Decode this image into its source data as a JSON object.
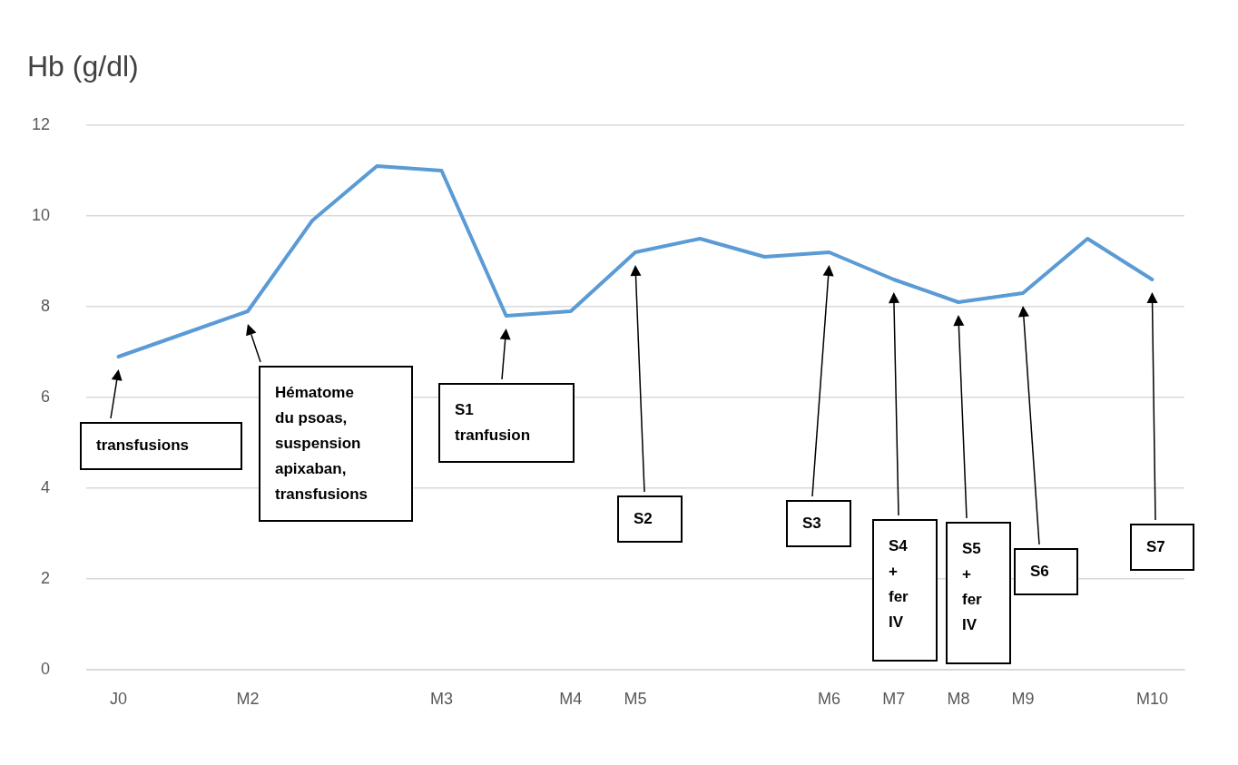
{
  "chart_data": {
    "type": "line",
    "ylabel": "Hb (g/dl)",
    "categories": [
      "J0",
      null,
      "M2",
      null,
      null,
      "M3",
      null,
      "M4",
      "M5",
      null,
      null,
      "M6",
      "M7",
      "M8",
      "M9",
      null,
      "M10"
    ],
    "series": [
      {
        "color": "#5b9bd5",
        "values": [
          6.9,
          7.4,
          7.9,
          9.9,
          11.1,
          11.0,
          7.8,
          7.9,
          9.2,
          9.5,
          9.1,
          9.2,
          8.6,
          8.1,
          8.3,
          9.5,
          8.6
        ]
      }
    ],
    "ylim": [
      0,
      12
    ],
    "yticks": [
      0,
      2,
      4,
      6,
      8,
      10,
      12
    ],
    "grid": "y",
    "marker": "none",
    "line_style": "solid",
    "annotations": [
      "transfusions",
      "Hématome\ndu psoas,\nsuspension\napixaban,\ntransfusions",
      "S1\ntranfusion",
      "S2",
      "S3",
      "S4\n+\nfer\nIV",
      "S5\n+\nfer\nIV",
      "S6",
      "S7"
    ]
  }
}
